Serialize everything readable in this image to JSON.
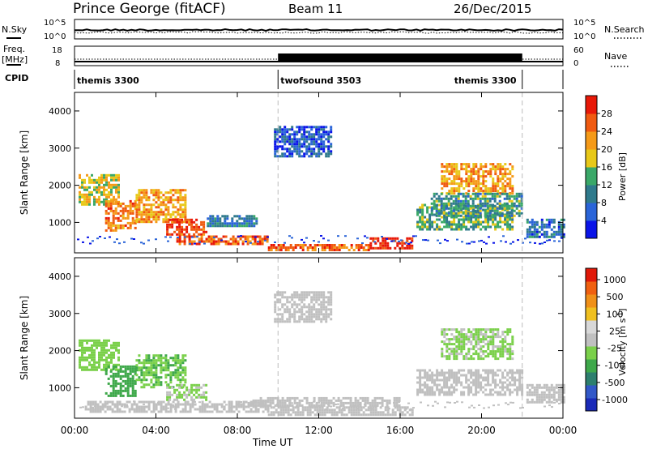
{
  "header": {
    "station": "Prince George (fitACF)",
    "beam": "Beam 11",
    "date": "26/Dec/2015"
  },
  "nsky_panel": {
    "left_label": "N.Sky",
    "left_ticks": [
      "10^5",
      "10^0"
    ],
    "right_label": "N.Search",
    "right_ticks": [
      "10^5",
      "10^0"
    ]
  },
  "freq_panel": {
    "left_label_line1": "Freq.",
    "left_label_line2": "[MHz]",
    "left_ticks": [
      "18",
      "8"
    ],
    "right_label": "Nave",
    "right_ticks": [
      "60",
      "0"
    ]
  },
  "cpid": {
    "label": "CPID",
    "segments": [
      {
        "name": "themis 3300",
        "start_h": 0,
        "end_h": 10
      },
      {
        "name": "twofsound 3503",
        "start_h": 10,
        "end_h": 22
      },
      {
        "name": "themis 3300",
        "start_h": 22,
        "end_h": 24
      }
    ]
  },
  "chart_data": [
    {
      "type": "heatmap",
      "title": "",
      "xlabel": "",
      "ylabel": "Slant Range [km]",
      "xlim": [
        0,
        24
      ],
      "ylim": [
        180,
        4500
      ],
      "y_ticks": [
        "1000",
        "2000",
        "3000",
        "4000"
      ],
      "colorbar": {
        "label": "Power [dB]",
        "ticks": [
          "4",
          "8",
          "12",
          "16",
          "20",
          "24",
          "28"
        ],
        "colors": [
          "#0a14e8",
          "#2a64d8",
          "#2f7a8c",
          "#3aa868",
          "#e8c818",
          "#f59a18",
          "#f05a10",
          "#e81808"
        ],
        "range": [
          0,
          32
        ]
      },
      "regions": [
        {
          "t": [
            0.2,
            2.2
          ],
          "r": [
            1500,
            2300
          ],
          "level": 18
        },
        {
          "t": [
            1.5,
            3.0
          ],
          "r": [
            800,
            1600
          ],
          "level": 24
        },
        {
          "t": [
            3.0,
            5.5
          ],
          "r": [
            1000,
            1900
          ],
          "level": 22
        },
        {
          "t": [
            4.5,
            6.5
          ],
          "r": [
            700,
            1100
          ],
          "level": 28
        },
        {
          "t": [
            5.0,
            9.5
          ],
          "r": [
            450,
            650
          ],
          "level": 26
        },
        {
          "t": [
            9.5,
            14.5
          ],
          "r": [
            250,
            420
          ],
          "level": 26
        },
        {
          "t": [
            14.5,
            16.6
          ],
          "r": [
            300,
            600
          ],
          "level": 30
        },
        {
          "t": [
            9.8,
            12.6
          ],
          "r": [
            2800,
            3600
          ],
          "level": 6
        },
        {
          "t": [
            6.5,
            9.0
          ],
          "r": [
            900,
            1200
          ],
          "level": 10
        },
        {
          "t": [
            16.8,
            21.5
          ],
          "r": [
            800,
            1500
          ],
          "level": 14
        },
        {
          "t": [
            18.0,
            21.5
          ],
          "r": [
            1800,
            2600
          ],
          "level": 22
        },
        {
          "t": [
            17.5,
            22.0
          ],
          "r": [
            1200,
            1800
          ],
          "level": 12
        },
        {
          "t": [
            22.2,
            24.0
          ],
          "r": [
            600,
            1100
          ],
          "level": 8
        }
      ]
    },
    {
      "type": "heatmap",
      "title": "",
      "xlabel": "Time UT",
      "ylabel": "Slant Range [km]",
      "xlim": [
        0,
        24
      ],
      "ylim": [
        180,
        4500
      ],
      "x_ticks": [
        "00:00",
        "04:00",
        "08:00",
        "12:00",
        "16:00",
        "20:00",
        "00:00"
      ],
      "y_ticks": [
        "1000",
        "2000",
        "3000",
        "4000"
      ],
      "colorbar": {
        "label": "Velocity [m s^-1]",
        "ticks": [
          "1000",
          "500",
          "100",
          "25",
          "-25",
          "-100",
          "-500",
          "-1000"
        ],
        "colors": [
          "#1a2ab8",
          "#3258c8",
          "#2d7f6e",
          "#3ea84a",
          "#7ad04a",
          "#c0c0c0",
          "#d8d8d8",
          "#f0c020",
          "#f09018",
          "#f06010",
          "#e01808"
        ],
        "range": [
          -1200,
          1200
        ]
      },
      "regions": [
        {
          "t": [
            0.2,
            2.2
          ],
          "r": [
            1500,
            2300
          ],
          "level": -200
        },
        {
          "t": [
            1.5,
            3.0
          ],
          "r": [
            800,
            1600
          ],
          "level": -450
        },
        {
          "t": [
            3.0,
            5.5
          ],
          "r": [
            1000,
            1900
          ],
          "level": -300
        },
        {
          "t": [
            4.5,
            6.5
          ],
          "r": [
            700,
            1100
          ],
          "level": -120
        },
        {
          "t": [
            0.5,
            9.5
          ],
          "r": [
            350,
            650
          ],
          "level": 60
        },
        {
          "t": [
            9.5,
            16.6
          ],
          "r": [
            250,
            500
          ],
          "level": -60
        },
        {
          "t": [
            8.5,
            16.0
          ],
          "r": [
            500,
            750
          ],
          "level": 0
        },
        {
          "t": [
            9.8,
            12.6
          ],
          "r": [
            2800,
            3600
          ],
          "level": 0
        },
        {
          "t": [
            16.8,
            22.0
          ],
          "r": [
            800,
            1500
          ],
          "level": 0
        },
        {
          "t": [
            18.0,
            21.5
          ],
          "r": [
            1800,
            2600
          ],
          "level": -150
        },
        {
          "t": [
            22.2,
            24.0
          ],
          "r": [
            600,
            1100
          ],
          "level": 40
        }
      ]
    }
  ]
}
